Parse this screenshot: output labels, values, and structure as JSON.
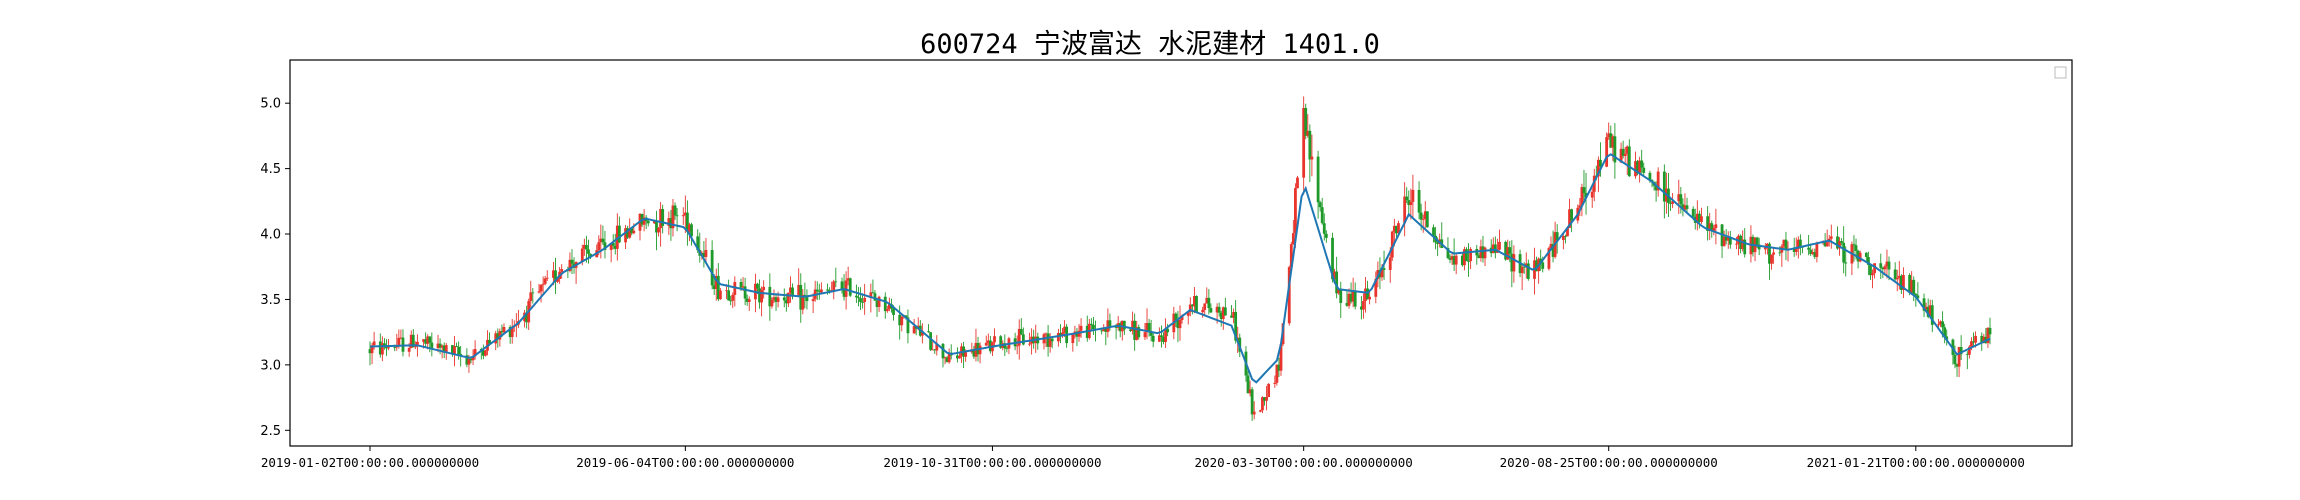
{
  "chart_data": {
    "type": "candlestick",
    "title": "600724 宁波富达 水泥建材 1401.0",
    "xlabel": "",
    "ylabel": "",
    "ylim": [
      2.38,
      5.33
    ],
    "y_ticks": [
      2.5,
      3.0,
      3.5,
      4.0,
      4.5,
      5.0
    ],
    "y_tick_labels": [
      "2.5",
      "3.0",
      "3.5",
      "4.0",
      "4.5",
      "5.0"
    ],
    "x_tick_labels": [
      "2019-01-02T00:00:00.000000000",
      "2019-06-04T00:00:00.000000000",
      "2019-10-31T00:00:00.000000000",
      "2020-03-30T00:00:00.000000000",
      "2020-08-25T00:00:00.000000000",
      "2021-01-21T00:00:00.000000000"
    ],
    "x_tick_dates": [
      "2019-01-02",
      "2019-06-04",
      "2019-10-31",
      "2020-03-30",
      "2020-08-25",
      "2021-01-21"
    ],
    "date_range": [
      "2019-01-02",
      "2021-02-26"
    ],
    "grid": false,
    "legend": {
      "placement": "upper right",
      "entries": []
    },
    "colors": {
      "up": "#e8342c",
      "down": "#1f9a2a",
      "ma_line": "#1f77b4",
      "axis": "#000000"
    },
    "series": [
      {
        "kind": "close",
        "x": [
          "2019-01-02",
          "2019-01-25",
          "2019-02-20",
          "2019-03-15",
          "2019-04-05",
          "2019-04-25",
          "2019-05-15",
          "2019-06-04",
          "2019-06-20",
          "2019-07-10",
          "2019-08-01",
          "2019-08-20",
          "2019-09-10",
          "2019-10-10",
          "2019-10-31",
          "2019-11-20",
          "2019-12-10",
          "2019-12-31",
          "2020-01-20",
          "2020-02-04",
          "2020-02-24",
          "2020-03-06",
          "2020-03-18",
          "2020-03-30",
          "2020-04-15",
          "2020-05-01",
          "2020-05-20",
          "2020-06-10",
          "2020-07-01",
          "2020-07-20",
          "2020-08-10",
          "2020-08-25",
          "2020-09-15",
          "2020-10-10",
          "2020-11-01",
          "2020-11-20",
          "2020-12-10",
          "2021-01-01",
          "2021-01-21",
          "2021-02-10",
          "2021-02-26"
        ],
        "values": [
          3.12,
          3.18,
          3.05,
          3.35,
          3.75,
          3.9,
          4.1,
          4.15,
          3.58,
          3.55,
          3.5,
          3.6,
          3.45,
          3.05,
          3.15,
          3.2,
          3.25,
          3.3,
          3.2,
          3.48,
          3.4,
          2.6,
          3.0,
          4.85,
          3.55,
          3.5,
          4.3,
          3.8,
          3.9,
          3.7,
          4.2,
          4.7,
          4.4,
          4.05,
          3.9,
          3.85,
          3.95,
          3.75,
          3.55,
          3.05,
          3.25
        ]
      },
      {
        "kind": "moving_average",
        "x": [
          "2019-01-02",
          "2019-01-25",
          "2019-02-20",
          "2019-03-15",
          "2019-04-05",
          "2019-04-25",
          "2019-05-15",
          "2019-06-04",
          "2019-06-20",
          "2019-07-10",
          "2019-08-01",
          "2019-08-20",
          "2019-09-10",
          "2019-10-10",
          "2019-10-31",
          "2019-11-20",
          "2019-12-10",
          "2019-12-31",
          "2020-01-20",
          "2020-02-04",
          "2020-02-24",
          "2020-03-06",
          "2020-03-18",
          "2020-03-30",
          "2020-04-15",
          "2020-05-01",
          "2020-05-20",
          "2020-06-10",
          "2020-07-01",
          "2020-07-20",
          "2020-08-10",
          "2020-08-25",
          "2020-09-15",
          "2020-10-10",
          "2020-11-01",
          "2020-11-20",
          "2020-12-10",
          "2021-01-01",
          "2021-01-21",
          "2021-02-10",
          "2021-02-26"
        ],
        "values": [
          3.14,
          3.15,
          3.05,
          3.32,
          3.7,
          3.88,
          4.12,
          4.05,
          3.62,
          3.55,
          3.52,
          3.58,
          3.48,
          3.08,
          3.14,
          3.19,
          3.24,
          3.3,
          3.24,
          3.42,
          3.3,
          2.85,
          3.05,
          4.4,
          3.58,
          3.55,
          4.15,
          3.85,
          3.88,
          3.72,
          4.15,
          4.62,
          4.4,
          4.05,
          3.92,
          3.88,
          3.95,
          3.75,
          3.52,
          3.08,
          3.2
        ]
      }
    ]
  }
}
